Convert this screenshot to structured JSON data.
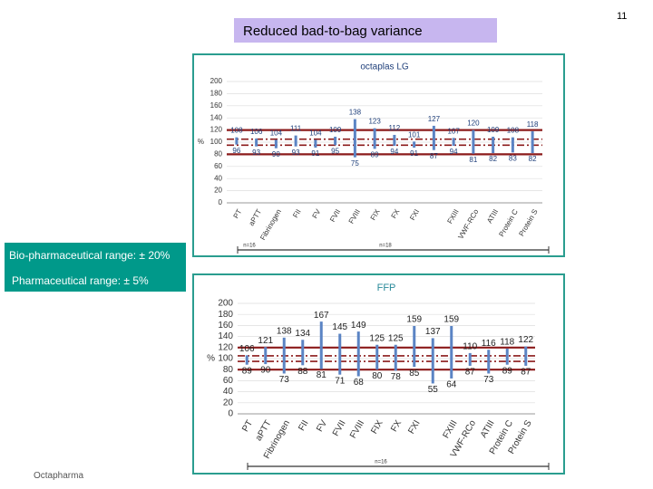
{
  "slide_number": "11",
  "title": "Reduced bad-to-bag variance",
  "legend_boxes": [
    "Bio-pharmaceutical range: ± 20%",
    "Pharmaceutical range: ± 5%"
  ],
  "footer": "Octapharma",
  "chart_data": [
    {
      "type": "range",
      "title": "octaplas LG",
      "ylabel": "%",
      "categories": [
        "PT",
        "aPTT",
        "Fibrinogen",
        "FII",
        "FV",
        "FVII",
        "FVIII",
        "FIX",
        "FX",
        "FXI",
        null,
        "FXIII",
        "VWF-RCo",
        "ATIII",
        "Protein C",
        "Protein S"
      ],
      "high_values": [
        108,
        106,
        104,
        111,
        104,
        109,
        138,
        123,
        112,
        101,
        127,
        107,
        120,
        109,
        108,
        118
      ],
      "low_values": [
        96,
        93,
        90,
        93,
        91,
        95,
        75,
        89,
        94,
        91,
        87,
        94,
        81,
        82,
        83,
        82
      ],
      "color": "#5b84c4",
      "label_color": "#1f3f7a",
      "ylim": [
        0,
        200
      ],
      "yticks": [
        0,
        20,
        40,
        60,
        80,
        100,
        120,
        140,
        160,
        180,
        200
      ],
      "grid": true,
      "reference_lines": [
        {
          "value": 120,
          "style": "solid"
        },
        {
          "value": 105,
          "style": "dashdot"
        },
        {
          "value": 95,
          "style": "dashdot"
        },
        {
          "value": 80,
          "style": "solid"
        }
      ],
      "reference_color": "#8b1a1a",
      "annotations": [
        "n=16",
        "n=18"
      ]
    },
    {
      "type": "range",
      "title": "FFP",
      "ylabel": "%",
      "categories": [
        "PT",
        "aPTT",
        "Fibrinogen",
        "FII",
        "FV",
        "FVII",
        "FVIII",
        "FIX",
        "FX",
        "FXI",
        null,
        "FXIII",
        "VWF-RCo",
        "ATIII",
        "Protein C",
        "Protein S"
      ],
      "high_values": [
        106,
        121,
        138,
        134,
        167,
        145,
        149,
        125,
        125,
        159,
        137,
        159,
        110,
        116,
        118,
        122
      ],
      "low_values": [
        89,
        90,
        73,
        88,
        81,
        71,
        68,
        80,
        78,
        85,
        55,
        64,
        87,
        73,
        89,
        87
      ],
      "color": "#5b84c4",
      "label_color": "#222222",
      "ylim": [
        0,
        200
      ],
      "yticks": [
        0,
        20,
        40,
        60,
        80,
        100,
        120,
        140,
        160,
        180,
        200
      ],
      "grid": true,
      "reference_lines": [
        {
          "value": 120,
          "style": "solid"
        },
        {
          "value": 105,
          "style": "dashdot"
        },
        {
          "value": 95,
          "style": "dashdot"
        },
        {
          "value": 80,
          "style": "solid"
        }
      ],
      "reference_color": "#8b1a1a",
      "annotations": [
        "n=16"
      ]
    }
  ]
}
